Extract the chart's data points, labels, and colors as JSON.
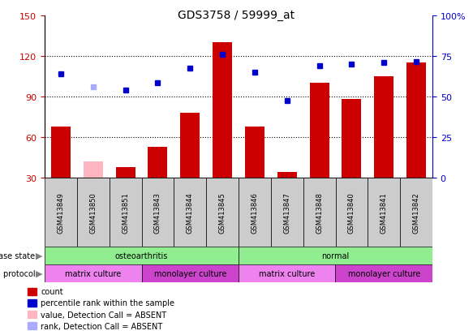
{
  "title": "GDS3758 / 59999_at",
  "samples": [
    "GSM413849",
    "GSM413850",
    "GSM413851",
    "GSM413843",
    "GSM413844",
    "GSM413845",
    "GSM413846",
    "GSM413847",
    "GSM413848",
    "GSM413840",
    "GSM413841",
    "GSM413842"
  ],
  "count_values": [
    68,
    null,
    38,
    53,
    78,
    130,
    68,
    34,
    100,
    88,
    105,
    115
  ],
  "count_absent": [
    null,
    42,
    null,
    null,
    null,
    null,
    null,
    null,
    null,
    null,
    null,
    null
  ],
  "rank_values": [
    107,
    null,
    95,
    100,
    111,
    121,
    108,
    87,
    113,
    114,
    115,
    116
  ],
  "rank_absent": [
    null,
    97,
    null,
    null,
    null,
    null,
    null,
    null,
    null,
    null,
    null,
    null
  ],
  "disease_state": [
    {
      "label": "osteoarthritis",
      "start": 0,
      "end": 6,
      "color": "#90ee90"
    },
    {
      "label": "normal",
      "start": 6,
      "end": 12,
      "color": "#90ee90"
    }
  ],
  "growth_protocol": [
    {
      "label": "matrix culture",
      "start": 0,
      "end": 3,
      "color": "#ee82ee"
    },
    {
      "label": "monolayer culture",
      "start": 3,
      "end": 6,
      "color": "#cc44cc"
    },
    {
      "label": "matrix culture",
      "start": 6,
      "end": 9,
      "color": "#ee82ee"
    },
    {
      "label": "monolayer culture",
      "start": 9,
      "end": 12,
      "color": "#cc44cc"
    }
  ],
  "ylim_left": [
    30,
    150
  ],
  "ylim_right": [
    0,
    100
  ],
  "yticks_left": [
    30,
    60,
    90,
    120,
    150
  ],
  "yticks_right": [
    0,
    25,
    50,
    75,
    100
  ],
  "bar_color": "#cc0000",
  "bar_absent_color": "#ffb6c1",
  "rank_color": "#0000cc",
  "rank_absent_color": "#aaaaff",
  "tick_label_fontsize": 7,
  "axis_label_color_left": "#cc0000",
  "axis_label_color_right": "#0000cc",
  "grid_color": "#000000",
  "background_color": "#ffffff",
  "plot_bg_color": "#ffffff",
  "bar_width": 0.6,
  "marker_size": 5
}
